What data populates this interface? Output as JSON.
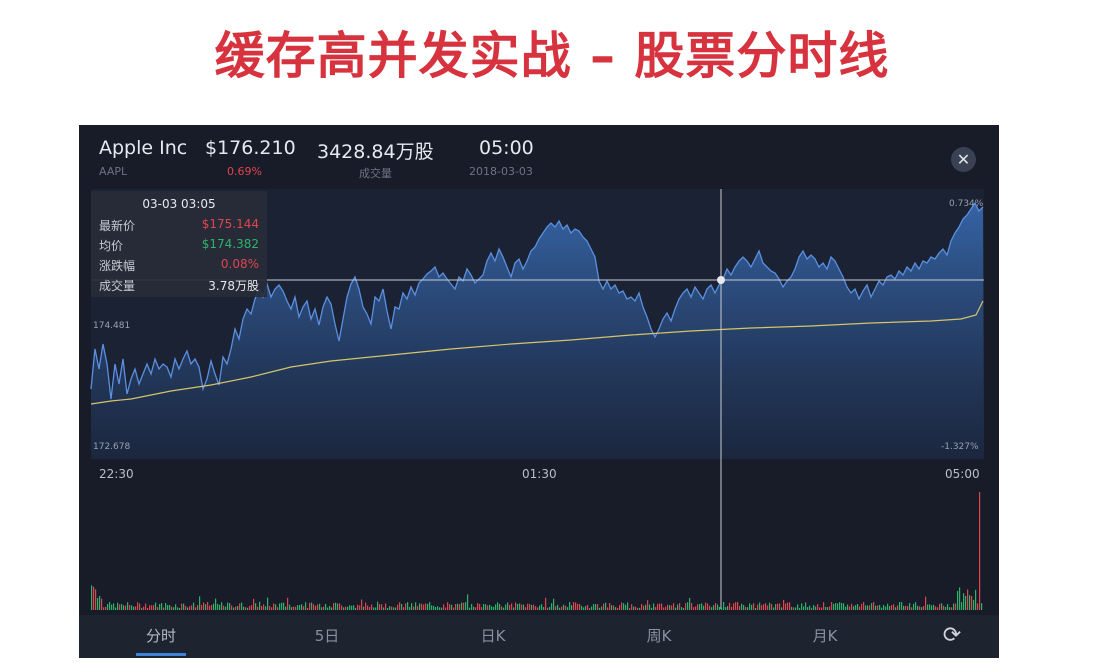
{
  "slide_title": "缓存高并发实战 – 股票分时线",
  "header": {
    "name": "Apple Inc",
    "ticker": "AAPL",
    "price": "$176.210",
    "change": "0.69%",
    "volume": "3428.84万股",
    "volume_label": "成交量",
    "time": "05:00",
    "date": "2018-03-03"
  },
  "close_icon": "close-icon",
  "chart": {
    "y_left_top": "174.481",
    "y_left_bottom": "172.678",
    "y_right_top": "0.734%",
    "y_right_bottom": "-1.327%",
    "time_start": "22:30",
    "time_mid": "01:30",
    "time_end": "05:00"
  },
  "tooltip": {
    "time": "03-03 03:05",
    "rows": [
      {
        "label": "最新价",
        "value": "$175.144",
        "color": "#e0454f"
      },
      {
        "label": "均价",
        "value": "$174.382",
        "color": "#2fb36a"
      },
      {
        "label": "涨跌幅",
        "value": "0.08%",
        "color": "#e0454f"
      },
      {
        "label": "成交量",
        "value": "3.78万股",
        "color": "#e6e9ef"
      }
    ]
  },
  "tabs": [
    "分时",
    "5日",
    "日K",
    "周K",
    "月K"
  ],
  "active_tab": "分时",
  "refresh_icon": "refresh-icon",
  "colors": {
    "title_red": "#d6333f",
    "up": "#e0454f",
    "down": "#2fb36a",
    "line": "#4f86d9",
    "avg_line": "#d7c36a"
  }
}
